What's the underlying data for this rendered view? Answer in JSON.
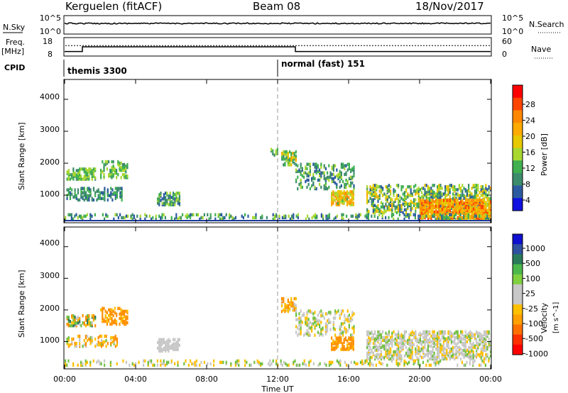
{
  "header": {
    "station": "Kerguelen (fitACF)",
    "beam": "Beam 08",
    "date": "18/Nov/2017"
  },
  "nsky_panel": {
    "left_label": "N.Sky",
    "right_label": "N.Search",
    "top_tick_left": "10^5",
    "bottom_tick_left": "10^0",
    "top_tick_right": "10^5",
    "bottom_tick_right": "10^0"
  },
  "freq_panel": {
    "left_label_1": "Freq.",
    "left_label_2": "[MHz]",
    "right_label": "Nave",
    "left_ticks": [
      "18",
      "8"
    ],
    "right_ticks": [
      "60",
      "0"
    ]
  },
  "cpid": {
    "label": "CPID",
    "programs": [
      "themis 3300",
      "normal (fast) 151"
    ]
  },
  "power_panel": {
    "ylabel": "Slant Range [km]",
    "yticks": [
      "4000",
      "3000",
      "2000",
      "1000"
    ],
    "colorbar_title": "Power [dB]",
    "colorbar_ticks": [
      "28",
      "24",
      "20",
      "16",
      "12",
      "8",
      "4"
    ],
    "colorbar_colors": [
      "#ff0000",
      "#ff4400",
      "#ff8800",
      "#ffaa00",
      "#e8c800",
      "#a8d830",
      "#40b050",
      "#3c8c6c",
      "#2c5aa0",
      "#1010e0"
    ]
  },
  "velocity_panel": {
    "ylabel": "Slant Range [km]",
    "yticks": [
      "4000",
      "3000",
      "2000",
      "1000"
    ],
    "colorbar_title": "Velocity",
    "colorbar_unit": "[m s^-1]",
    "colorbar_ticks": [
      "1000",
      "500",
      "100",
      "25",
      "-25",
      "-100",
      "-500",
      "-1000"
    ],
    "colorbar_colors": [
      "#1010d0",
      "#3050a0",
      "#2a7a5a",
      "#4cb84c",
      "#80d040",
      "#c8c8c8",
      "#c8c8c8",
      "#ffc000",
      "#ffa000",
      "#ff7000",
      "#ff3000",
      "#ff0000"
    ]
  },
  "xaxis": {
    "ticks": [
      "00:00",
      "04:00",
      "08:00",
      "12:00",
      "16:00",
      "20:00",
      "00:00"
    ],
    "label": "Time UT"
  },
  "chart_data": {
    "type": "heatmap",
    "title": "Kerguelen (fitACF) Beam 08 18/Nov/2017",
    "xlabel": "Time UT",
    "ylabel": "Slant Range [km]",
    "x_range_hours": [
      0,
      24
    ],
    "ylim": [
      180,
      4600
    ],
    "cpid_switch_hour": 12,
    "freq_mhz": [
      {
        "from_hour": 0,
        "to_hour": 1,
        "value": 10
      },
      {
        "from_hour": 1,
        "to_hour": 13,
        "value": 13
      },
      {
        "from_hour": 13,
        "to_hour": 24,
        "value": 10
      }
    ],
    "nave_dotted": 35,
    "power_db_ticks": [
      4,
      8,
      12,
      16,
      20,
      24,
      28
    ],
    "velocity_ticks": [
      -1000,
      -500,
      -100,
      -25,
      25,
      100,
      500,
      1000
    ],
    "power_regions": [
      {
        "t0": 0.1,
        "t1": 1.7,
        "r0": 1450,
        "r1": 1800,
        "dens": 0.5,
        "lvl": [
          8,
          16
        ]
      },
      {
        "t0": 0.1,
        "t1": 3.2,
        "r0": 800,
        "r1": 1200,
        "dens": 0.35,
        "lvl": [
          4,
          12
        ]
      },
      {
        "t0": 2.0,
        "t1": 3.5,
        "r0": 1500,
        "r1": 2000,
        "dens": 0.4,
        "lvl": [
          8,
          16
        ]
      },
      {
        "t0": 5.2,
        "t1": 6.5,
        "r0": 650,
        "r1": 1050,
        "dens": 0.55,
        "lvl": [
          4,
          16
        ]
      },
      {
        "t0": 11.6,
        "t1": 12.0,
        "r0": 2200,
        "r1": 2400,
        "dens": 0.5,
        "lvl": [
          8,
          16
        ]
      },
      {
        "t0": 12.2,
        "t1": 13.0,
        "r0": 1900,
        "r1": 2350,
        "dens": 0.55,
        "lvl": [
          8,
          20
        ]
      },
      {
        "t0": 13.0,
        "t1": 16.3,
        "r0": 1150,
        "r1": 1950,
        "dens": 0.3,
        "lvl": [
          4,
          16
        ]
      },
      {
        "t0": 15.0,
        "t1": 16.3,
        "r0": 650,
        "r1": 1100,
        "dens": 0.6,
        "lvl": [
          12,
          24
        ]
      },
      {
        "t0": 17.0,
        "t1": 24.0,
        "r0": 400,
        "r1": 1300,
        "dens": 0.4,
        "lvl": [
          4,
          20
        ]
      },
      {
        "t0": 20.0,
        "t1": 24.0,
        "r0": 200,
        "r1": 800,
        "dens": 0.7,
        "lvl": [
          16,
          28
        ]
      },
      {
        "t0": 0.0,
        "t1": 24.0,
        "r0": 200,
        "r1": 380,
        "dens": 0.25,
        "lvl": [
          4,
          16
        ]
      }
    ],
    "velocity_regions": [
      {
        "t0": 0.1,
        "t1": 1.7,
        "r0": 1450,
        "r1": 1800,
        "dens": 0.5,
        "vel": [
          -200,
          150
        ]
      },
      {
        "t0": 2.0,
        "t1": 3.5,
        "r0": 1500,
        "r1": 2000,
        "dens": 0.4,
        "vel": [
          -300,
          -50
        ]
      },
      {
        "t0": 0.1,
        "t1": 3.0,
        "r0": 800,
        "r1": 1150,
        "dens": 0.3,
        "vel": [
          -150,
          50
        ]
      },
      {
        "t0": 5.2,
        "t1": 6.5,
        "r0": 650,
        "r1": 1050,
        "dens": 0.55,
        "vel": [
          -20,
          20
        ]
      },
      {
        "t0": 12.2,
        "t1": 13.0,
        "r0": 1900,
        "r1": 2350,
        "dens": 0.5,
        "vel": [
          -200,
          20
        ]
      },
      {
        "t0": 13.0,
        "t1": 16.3,
        "r0": 1150,
        "r1": 1950,
        "dens": 0.3,
        "vel": [
          -60,
          60
        ]
      },
      {
        "t0": 15.0,
        "t1": 16.3,
        "r0": 700,
        "r1": 1100,
        "dens": 0.6,
        "vel": [
          -300,
          -50
        ]
      },
      {
        "t0": 17.0,
        "t1": 24.0,
        "r0": 400,
        "r1": 1300,
        "dens": 0.45,
        "vel": [
          -40,
          40
        ]
      },
      {
        "t0": 0.0,
        "t1": 24.0,
        "r0": 200,
        "r1": 380,
        "dens": 0.2,
        "vel": [
          -80,
          80
        ]
      }
    ]
  }
}
